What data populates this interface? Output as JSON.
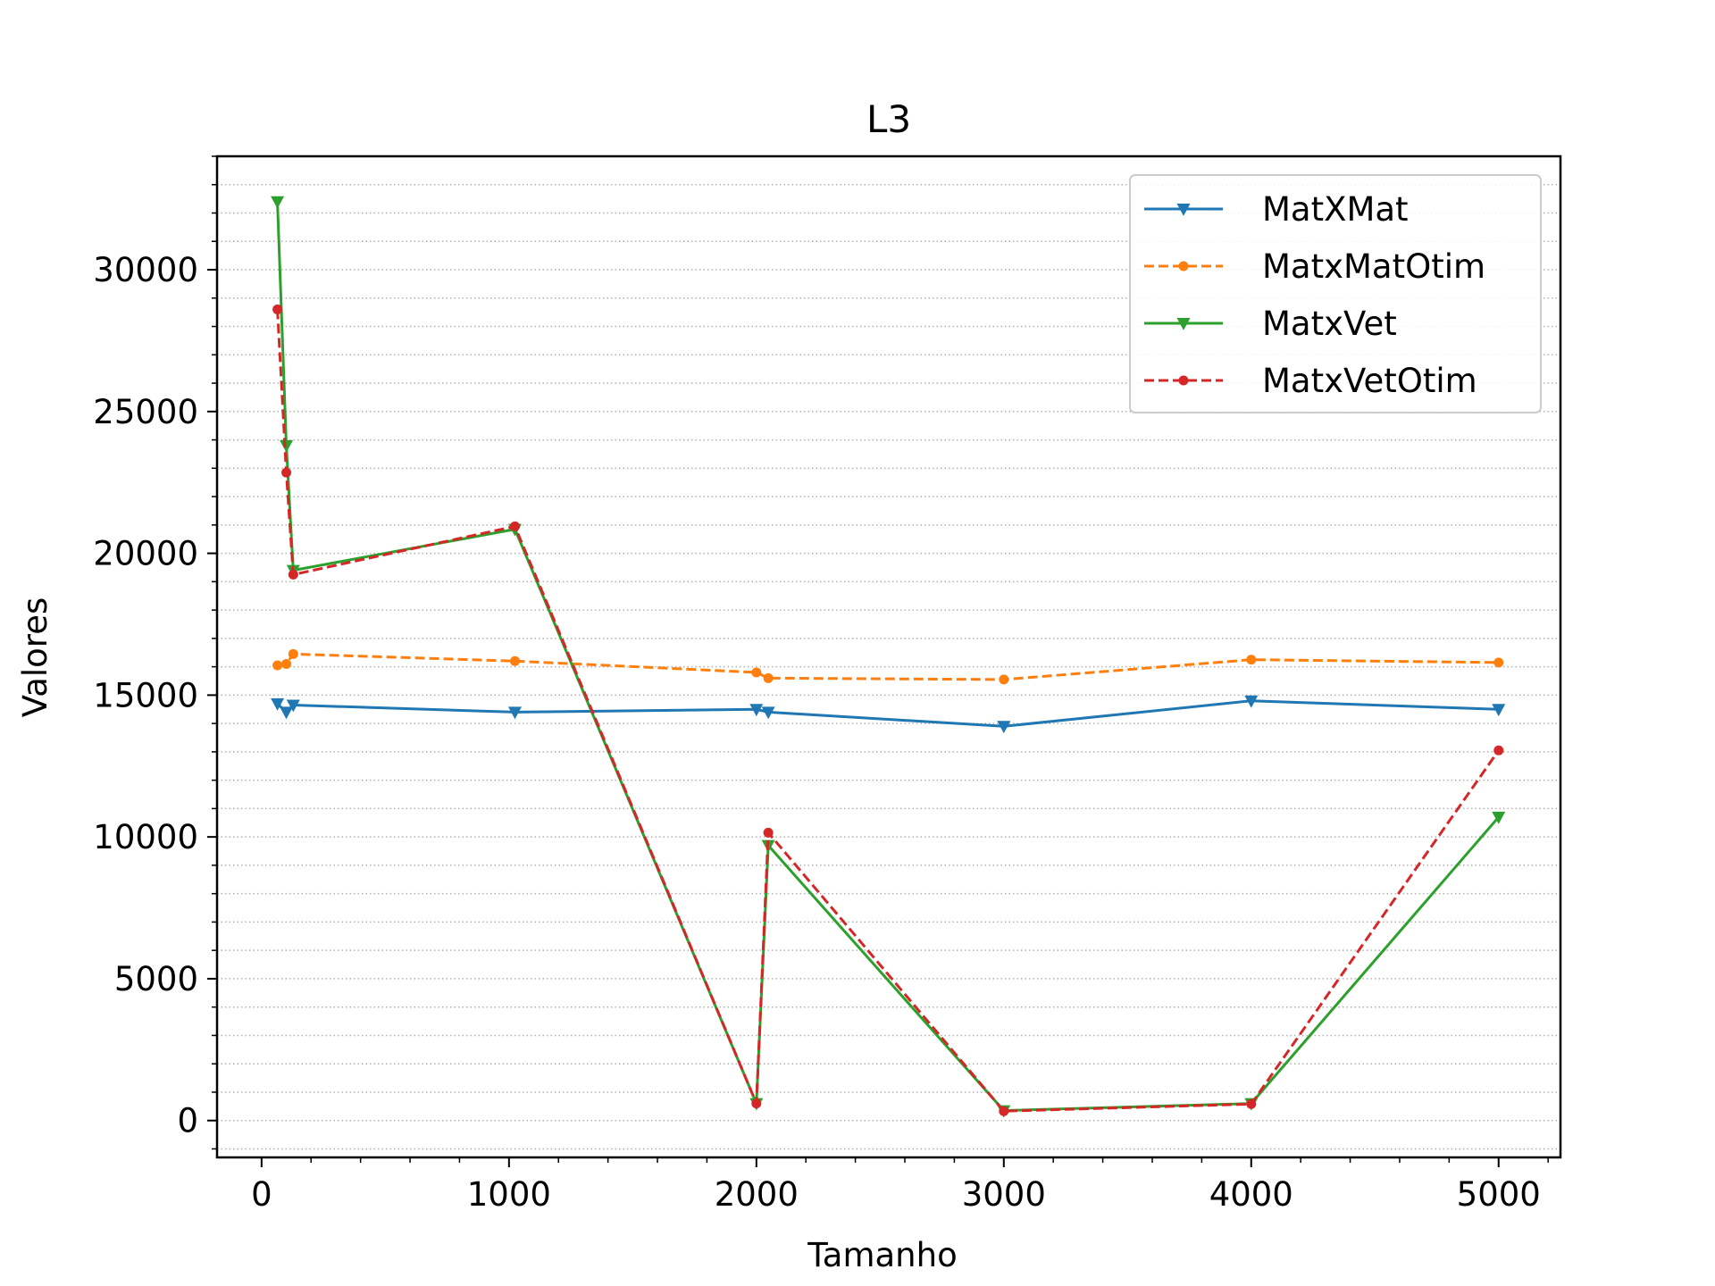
{
  "chart_data": {
    "type": "line",
    "title": "L3",
    "xlabel": "Tamanho",
    "ylabel": "Valores",
    "xlim": [
      -180,
      5250
    ],
    "ylim": [
      -1300,
      34000
    ],
    "x_ticks": [
      0,
      1000,
      2000,
      3000,
      4000,
      5000
    ],
    "x_tick_labels": [
      "0",
      "1000",
      "2000",
      "3000",
      "4000",
      "5000"
    ],
    "y_ticks": [
      0,
      5000,
      10000,
      15000,
      20000,
      25000,
      30000
    ],
    "y_tick_labels": [
      "0",
      "5000",
      "10000",
      "15000",
      "20000",
      "25000",
      "30000"
    ],
    "x_minor_step": 200,
    "y_minor_step": 1000,
    "grid": "y-minor dotted",
    "legend_position": "upper right",
    "x": [
      64,
      100,
      128,
      1024,
      2000,
      2048,
      3000,
      4000,
      5000
    ],
    "series": [
      {
        "name": "MatXMat",
        "color": "#1f77b4",
        "linestyle": "solid",
        "marker": "triangle-down",
        "values": [
          14700,
          14400,
          14650,
          14400,
          14500,
          14400,
          13900,
          14800,
          14500
        ]
      },
      {
        "name": "MatxMatOtim",
        "color": "#ff7f0e",
        "linestyle": "dashed",
        "marker": "circle",
        "values": [
          16050,
          16100,
          16450,
          16200,
          15800,
          15600,
          15550,
          16250,
          16150
        ]
      },
      {
        "name": "MatxVet",
        "color": "#2ca02c",
        "linestyle": "solid",
        "marker": "triangle-down",
        "values": [
          32400,
          23800,
          19400,
          20850,
          600,
          9700,
          350,
          600,
          10700
        ]
      },
      {
        "name": "MatxVetOtim",
        "color": "#d62728",
        "linestyle": "dashed",
        "marker": "circle",
        "values": [
          28600,
          22850,
          19250,
          20950,
          600,
          10150,
          330,
          580,
          13050
        ]
      }
    ]
  }
}
